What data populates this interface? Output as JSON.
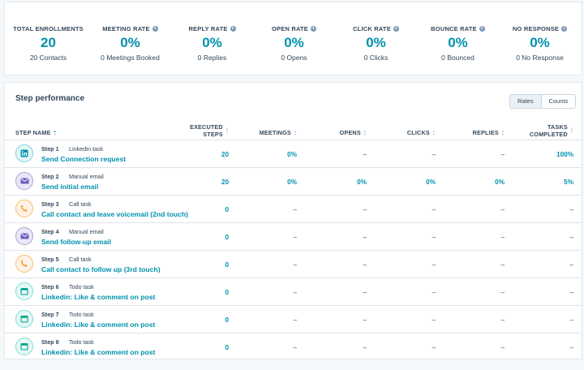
{
  "stats": [
    {
      "label": "TOTAL ENROLLMENTS",
      "value": "20",
      "sub": "20 Contacts",
      "info": false
    },
    {
      "label": "MEETING RATE",
      "value": "0%",
      "sub": "0 Meetings Booked",
      "info": true
    },
    {
      "label": "REPLY RATE",
      "value": "0%",
      "sub": "0 Replies",
      "info": true
    },
    {
      "label": "OPEN RATE",
      "value": "0%",
      "sub": "0 Opens",
      "info": true
    },
    {
      "label": "CLICK RATE",
      "value": "0%",
      "sub": "0 Clicks",
      "info": true
    },
    {
      "label": "BOUNCE RATE",
      "value": "0%",
      "sub": "0 Bounced",
      "info": true
    },
    {
      "label": "NO RESPONSE",
      "value": "0%",
      "sub": "0 No Response",
      "info": true
    }
  ],
  "perf": {
    "title": "Step performance",
    "toggle": {
      "rates": "Rates",
      "counts": "Counts",
      "active": "rates"
    },
    "headers": {
      "step_name": "STEP NAME",
      "executed_1": "EXECUTED",
      "executed_2": "STEPS",
      "meetings": "MEETINGS",
      "opens": "OPENS",
      "clicks": "CLICKS",
      "replies": "REPLIES",
      "tasks_1": "TASKS",
      "tasks_2": "COMPLETED"
    },
    "rows": [
      {
        "step": "Step 1",
        "type": "LinkedIn task",
        "name": "Send Connection request",
        "icon": "linkedin-icon",
        "color": "blue",
        "executed": "20",
        "meetings": "0%",
        "opens": "–",
        "clicks": "–",
        "replies": "–",
        "tasks": "100%"
      },
      {
        "step": "Step 2",
        "type": "Manual email",
        "name": "Send initial email",
        "icon": "email-icon",
        "color": "purple",
        "executed": "20",
        "meetings": "0%",
        "opens": "0%",
        "clicks": "0%",
        "replies": "0%",
        "tasks": "5%"
      },
      {
        "step": "Step 3",
        "type": "Call task",
        "name": "Call contact and leave voicemail (2nd touch)",
        "icon": "phone-icon",
        "color": "orange",
        "executed": "0",
        "meetings": "–",
        "opens": "–",
        "clicks": "–",
        "replies": "–",
        "tasks": "–"
      },
      {
        "step": "Step 4",
        "type": "Manual email",
        "name": "Send follow-up email",
        "icon": "email-icon",
        "color": "purple",
        "executed": "0",
        "meetings": "–",
        "opens": "–",
        "clicks": "–",
        "replies": "–",
        "tasks": "–"
      },
      {
        "step": "Step 5",
        "type": "Call task",
        "name": "Call contact to follow up (3rd touch)",
        "icon": "phone-icon",
        "color": "orange",
        "executed": "0",
        "meetings": "–",
        "opens": "–",
        "clicks": "–",
        "replies": "–",
        "tasks": "–"
      },
      {
        "step": "Step 6",
        "type": "Todo task",
        "name": "Linkedin: Like & comment on post",
        "icon": "todo-icon",
        "color": "green",
        "executed": "0",
        "meetings": "–",
        "opens": "–",
        "clicks": "–",
        "replies": "–",
        "tasks": "–"
      },
      {
        "step": "Step 7",
        "type": "Todo task",
        "name": "Linkedin: Like & comment on post",
        "icon": "todo-icon",
        "color": "green",
        "executed": "0",
        "meetings": "–",
        "opens": "–",
        "clicks": "–",
        "replies": "–",
        "tasks": "–"
      },
      {
        "step": "Step 8",
        "type": "Todo task",
        "name": "Linkedin: Like & comment on post",
        "icon": "todo-icon",
        "color": "green",
        "executed": "0",
        "meetings": "–",
        "opens": "–",
        "clicks": "–",
        "replies": "–",
        "tasks": "–"
      }
    ]
  },
  "colors": {
    "accent": "#0091ae",
    "text": "#33475b",
    "border": "#dfe3eb"
  }
}
